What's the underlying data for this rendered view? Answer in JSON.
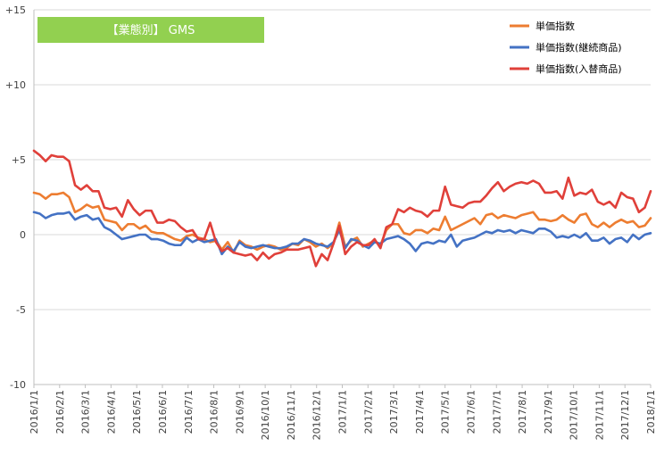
{
  "chart_data": {
    "type": "line",
    "title": "【業態別】 GMS",
    "colors": {
      "title_box": "#92D050",
      "grid": "#D9D9D9",
      "axis": "#BFBFBF"
    },
    "ylim": [
      -10,
      15
    ],
    "yticks": [
      {
        "value": 15,
        "label": "+15"
      },
      {
        "value": 10,
        "label": "+10"
      },
      {
        "value": 5,
        "label": "+5"
      },
      {
        "value": 0,
        "label": "0"
      },
      {
        "value": -5,
        "label": "-5"
      },
      {
        "value": -10,
        "label": "-10"
      }
    ],
    "xticks": [
      "2016/1/1",
      "2016/2/1",
      "2016/3/1",
      "2016/4/1",
      "2016/5/1",
      "2016/6/1",
      "2016/7/1",
      "2016/8/1",
      "2016/9/1",
      "2016/10/1",
      "2016/11/1",
      "2016/12/1",
      "2017/1/1",
      "2017/2/1",
      "2017/3/1",
      "2017/4/1",
      "2017/5/1",
      "2017/6/1",
      "2017/7/1",
      "2017/8/1",
      "2017/9/1",
      "2017/10/1",
      "2017/11/1",
      "2017/12/1",
      "2018/1/1"
    ],
    "xlim": [
      "2016-01-01",
      "2018-01-01"
    ],
    "legend_position": "top-right",
    "series": [
      {
        "name": "単価指数",
        "color": "#ED7D31",
        "values": [
          2.8,
          2.7,
          2.4,
          2.7,
          2.7,
          2.8,
          2.5,
          1.5,
          1.7,
          2.0,
          1.8,
          1.9,
          1.0,
          0.9,
          0.8,
          0.3,
          0.7,
          0.7,
          0.4,
          0.6,
          0.2,
          0.1,
          0.1,
          -0.1,
          -0.3,
          -0.4,
          -0.1,
          0.0,
          -0.2,
          -0.3,
          -0.5,
          -0.4,
          -1.0,
          -0.5,
          -1.2,
          -0.4,
          -0.7,
          -0.8,
          -1.0,
          -0.8,
          -0.7,
          -0.8,
          -1.0,
          -0.9,
          -0.6,
          -0.7,
          -0.3,
          -0.5,
          -0.8,
          -0.6,
          -0.9,
          -0.6,
          0.8,
          -0.8,
          -0.4,
          -0.2,
          -0.8,
          -0.6,
          -0.4,
          -0.7,
          0.3,
          0.7,
          0.7,
          0.1,
          0.0,
          0.3,
          0.3,
          0.1,
          0.4,
          0.3,
          1.2,
          0.3,
          0.5,
          0.7,
          0.9,
          1.1,
          0.7,
          1.3,
          1.4,
          1.1,
          1.3,
          1.2,
          1.1,
          1.3,
          1.4,
          1.5,
          1.0,
          1.0,
          0.9,
          1.0,
          1.3,
          1.0,
          0.8,
          1.3,
          1.4,
          0.7,
          0.5,
          0.8,
          0.5,
          0.8,
          1.0,
          0.8,
          0.9,
          0.5,
          0.6,
          1.1
        ]
      },
      {
        "name": "単価指数(継続商品)",
        "color": "#4472C4",
        "values": [
          1.5,
          1.4,
          1.1,
          1.3,
          1.4,
          1.4,
          1.5,
          1.0,
          1.2,
          1.3,
          1.0,
          1.1,
          0.5,
          0.3,
          0.0,
          -0.3,
          -0.2,
          -0.1,
          0.0,
          0.0,
          -0.3,
          -0.3,
          -0.4,
          -0.6,
          -0.7,
          -0.7,
          -0.2,
          -0.5,
          -0.3,
          -0.5,
          -0.4,
          -0.3,
          -1.3,
          -0.8,
          -1.1,
          -0.5,
          -0.8,
          -0.9,
          -0.8,
          -0.7,
          -0.8,
          -0.9,
          -0.9,
          -0.8,
          -0.6,
          -0.6,
          -0.3,
          -0.4,
          -0.6,
          -0.7,
          -0.8,
          -0.5,
          0.3,
          -0.9,
          -0.3,
          -0.4,
          -0.7,
          -0.9,
          -0.5,
          -0.6,
          -0.3,
          -0.2,
          -0.1,
          -0.3,
          -0.6,
          -1.1,
          -0.6,
          -0.5,
          -0.6,
          -0.4,
          -0.5,
          0.0,
          -0.8,
          -0.4,
          -0.3,
          -0.2,
          0.0,
          0.2,
          0.1,
          0.3,
          0.2,
          0.3,
          0.1,
          0.3,
          0.2,
          0.1,
          0.4,
          0.4,
          0.2,
          -0.2,
          -0.1,
          -0.2,
          0.0,
          -0.2,
          0.1,
          -0.4,
          -0.4,
          -0.2,
          -0.6,
          -0.3,
          -0.2,
          -0.5,
          0.0,
          -0.3,
          0.0,
          0.1
        ]
      },
      {
        "name": "単価指数(入替商品)",
        "color": "#E0403A",
        "values": [
          5.6,
          5.3,
          4.9,
          5.3,
          5.2,
          5.2,
          4.9,
          3.3,
          3.0,
          3.3,
          2.9,
          2.9,
          1.8,
          1.7,
          1.8,
          1.2,
          2.3,
          1.7,
          1.3,
          1.6,
          1.6,
          0.8,
          0.8,
          1.0,
          0.9,
          0.5,
          0.2,
          0.3,
          -0.3,
          -0.3,
          0.8,
          -0.5,
          -1.1,
          -0.9,
          -1.2,
          -1.3,
          -1.4,
          -1.3,
          -1.7,
          -1.2,
          -1.6,
          -1.3,
          -1.2,
          -1.0,
          -1.0,
          -1.0,
          -0.9,
          -0.8,
          -2.1,
          -1.3,
          -1.7,
          -0.6,
          0.6,
          -1.3,
          -0.8,
          -0.5,
          -0.7,
          -0.7,
          -0.3,
          -0.9,
          0.5,
          0.7,
          1.7,
          1.5,
          1.8,
          1.6,
          1.5,
          1.2,
          1.6,
          1.6,
          3.2,
          2.0,
          1.9,
          1.8,
          2.1,
          2.2,
          2.2,
          2.6,
          3.1,
          3.5,
          2.9,
          3.2,
          3.4,
          3.5,
          3.4,
          3.6,
          3.4,
          2.8,
          2.8,
          2.9,
          2.4,
          3.8,
          2.6,
          2.8,
          2.7,
          3.0,
          2.2,
          2.0,
          2.2,
          1.8,
          2.8,
          2.5,
          2.4,
          1.5,
          1.8,
          2.9
        ]
      }
    ]
  }
}
